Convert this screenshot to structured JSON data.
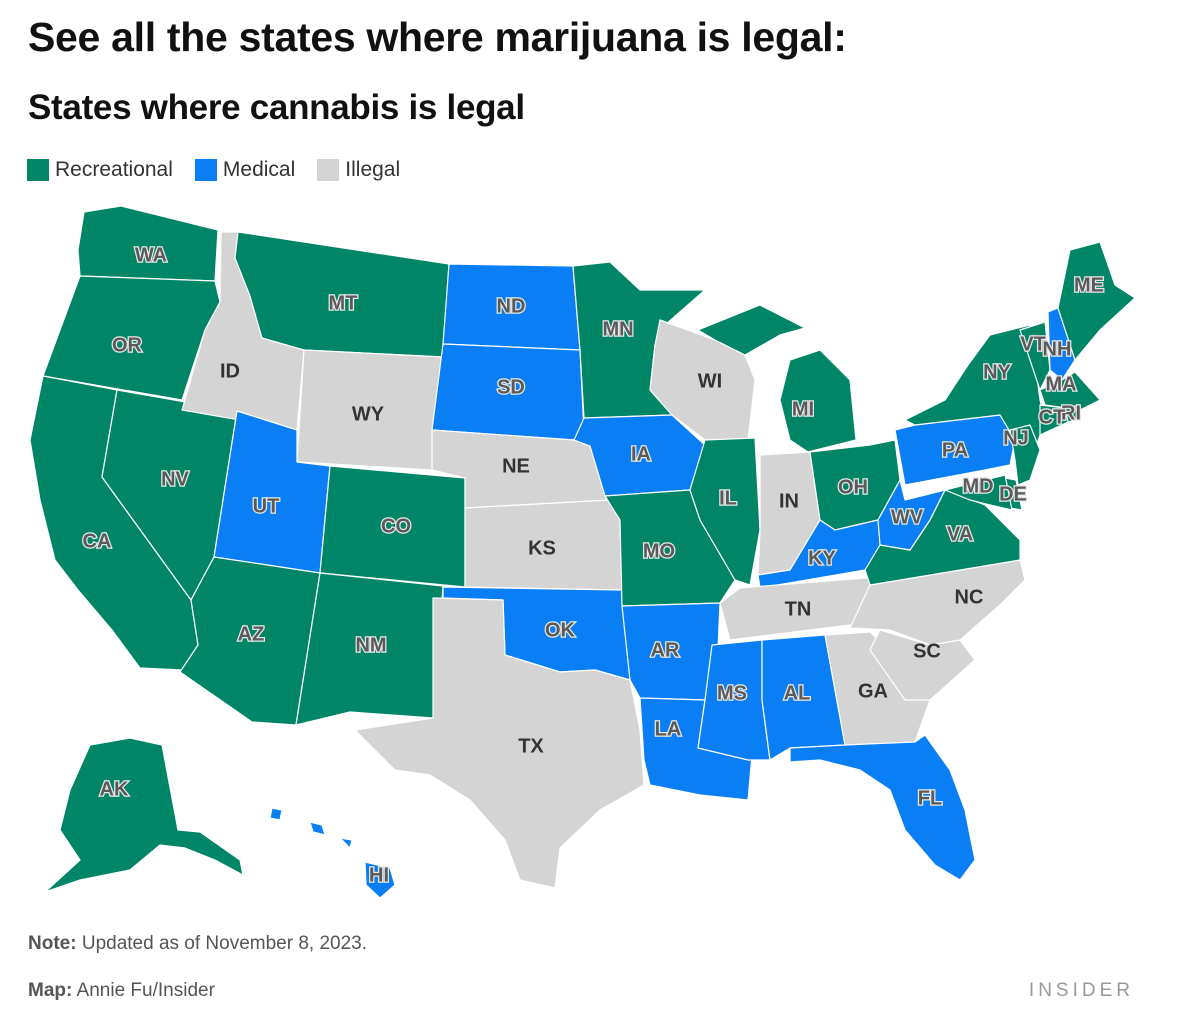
{
  "header": {
    "headline": "See all the states where marijuana is legal:",
    "map_title": "States where cannabis is legal"
  },
  "legend": [
    {
      "label": "Recreational",
      "status": "recreational"
    },
    {
      "label": "Medical",
      "status": "medical"
    },
    {
      "label": "Illegal",
      "status": "illegal"
    }
  ],
  "colors": {
    "recreational": "#008566",
    "medical": "#0a7ff5",
    "illegal": "#d4d4d4"
  },
  "states": [
    {
      "abbr": "WA",
      "status": "recreational"
    },
    {
      "abbr": "OR",
      "status": "recreational"
    },
    {
      "abbr": "CA",
      "status": "recreational"
    },
    {
      "abbr": "NV",
      "status": "recreational"
    },
    {
      "abbr": "ID",
      "status": "illegal"
    },
    {
      "abbr": "MT",
      "status": "recreational"
    },
    {
      "abbr": "WY",
      "status": "illegal"
    },
    {
      "abbr": "UT",
      "status": "medical"
    },
    {
      "abbr": "AZ",
      "status": "recreational"
    },
    {
      "abbr": "CO",
      "status": "recreational"
    },
    {
      "abbr": "NM",
      "status": "recreational"
    },
    {
      "abbr": "ND",
      "status": "medical"
    },
    {
      "abbr": "SD",
      "status": "medical"
    },
    {
      "abbr": "NE",
      "status": "illegal"
    },
    {
      "abbr": "KS",
      "status": "illegal"
    },
    {
      "abbr": "OK",
      "status": "medical"
    },
    {
      "abbr": "TX",
      "status": "illegal"
    },
    {
      "abbr": "MN",
      "status": "recreational"
    },
    {
      "abbr": "IA",
      "status": "medical"
    },
    {
      "abbr": "MO",
      "status": "recreational"
    },
    {
      "abbr": "AR",
      "status": "medical"
    },
    {
      "abbr": "LA",
      "status": "medical"
    },
    {
      "abbr": "WI",
      "status": "illegal"
    },
    {
      "abbr": "IL",
      "status": "recreational"
    },
    {
      "abbr": "MI",
      "status": "recreational"
    },
    {
      "abbr": "IN",
      "status": "illegal"
    },
    {
      "abbr": "OH",
      "status": "recreational"
    },
    {
      "abbr": "KY",
      "status": "medical"
    },
    {
      "abbr": "TN",
      "status": "illegal"
    },
    {
      "abbr": "MS",
      "status": "medical"
    },
    {
      "abbr": "AL",
      "status": "medical"
    },
    {
      "abbr": "GA",
      "status": "illegal"
    },
    {
      "abbr": "FL",
      "status": "medical"
    },
    {
      "abbr": "SC",
      "status": "illegal"
    },
    {
      "abbr": "NC",
      "status": "illegal"
    },
    {
      "abbr": "VA",
      "status": "recreational"
    },
    {
      "abbr": "WV",
      "status": "medical"
    },
    {
      "abbr": "PA",
      "status": "medical"
    },
    {
      "abbr": "NY",
      "status": "recreational"
    },
    {
      "abbr": "VT",
      "status": "recreational"
    },
    {
      "abbr": "NH",
      "status": "medical"
    },
    {
      "abbr": "ME",
      "status": "recreational"
    },
    {
      "abbr": "MA",
      "status": "recreational"
    },
    {
      "abbr": "RI",
      "status": "recreational"
    },
    {
      "abbr": "CT",
      "status": "recreational"
    },
    {
      "abbr": "NJ",
      "status": "recreational"
    },
    {
      "abbr": "DE",
      "status": "recreational"
    },
    {
      "abbr": "MD",
      "status": "recreational"
    },
    {
      "abbr": "AK",
      "status": "recreational"
    },
    {
      "abbr": "HI",
      "status": "medical"
    }
  ],
  "footer": {
    "note_label": "Note:",
    "note_text": " Updated as of November 8, 2023.",
    "credit_label": "Map:",
    "credit_text": " Annie Fu/Insider",
    "brand": "INSIDER"
  }
}
